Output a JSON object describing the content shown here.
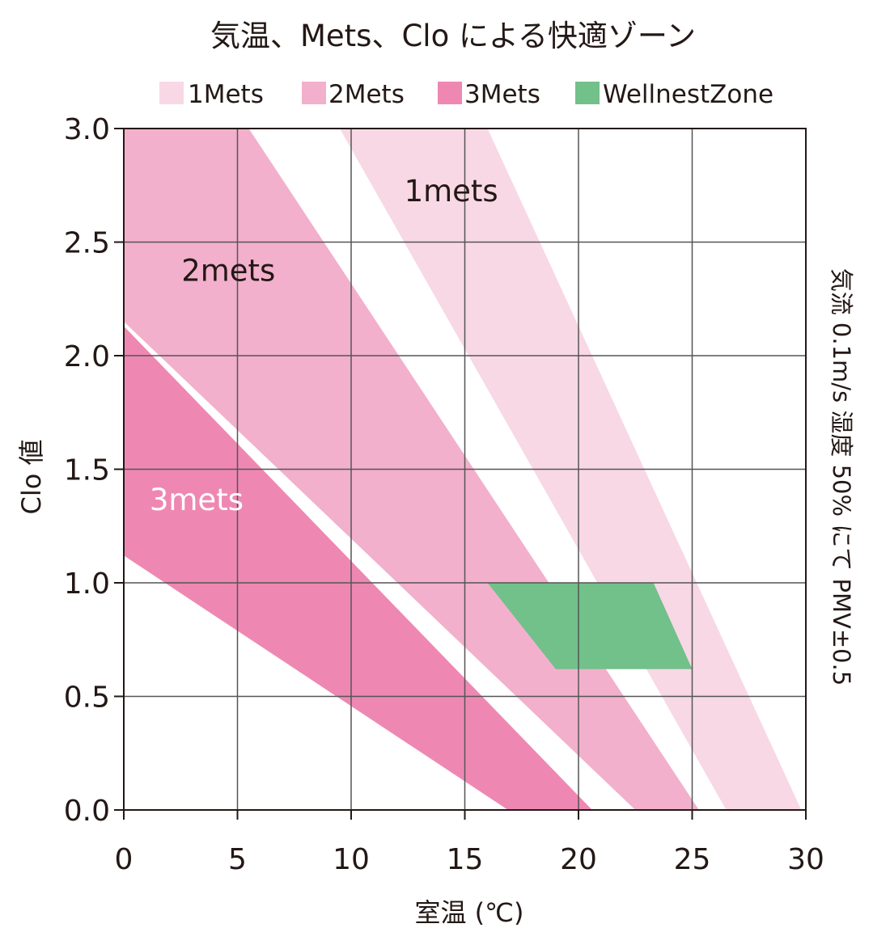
{
  "chart_data": {
    "type": "area",
    "title": "気温、Mets、Clo による快適ゾーン",
    "xlabel": "室温 (℃)",
    "ylabel": "Clo 値",
    "right_label": "気流 0.1m/s 湿度 50% にて PMV±0.5",
    "xlim": [
      0,
      30
    ],
    "ylim": [
      0,
      3.0
    ],
    "x_ticks": [
      0,
      5,
      10,
      15,
      20,
      25,
      30
    ],
    "x_tick_labels": [
      "0",
      "5",
      "10",
      "15",
      "20",
      "25",
      "30"
    ],
    "y_ticks": [
      0,
      0.5,
      1.0,
      1.5,
      2.0,
      2.5,
      3.0
    ],
    "y_tick_labels": [
      "0.0",
      "0.5",
      "1.0",
      "1.5",
      "2.0",
      "2.5",
      "3.0"
    ],
    "grid": true,
    "legend_position": "top",
    "legend": [
      {
        "label": "1Mets",
        "color": "#f8d8e5"
      },
      {
        "label": "2Mets",
        "color": "#f2b0cc"
      },
      {
        "label": "3Mets",
        "color": "#ee88b3"
      },
      {
        "label": "WellnestZone",
        "color": "#72c08a"
      }
    ],
    "series": [
      {
        "name": "1Mets",
        "color": "#f8d8e5",
        "polygon": [
          [
            9.5,
            3.0
          ],
          [
            16.0,
            3.0
          ],
          [
            29.8,
            0.0
          ],
          [
            26.5,
            0.0
          ]
        ]
      },
      {
        "name": "2Mets",
        "color": "#f2b0cc",
        "polygon": [
          [
            0,
            3.0
          ],
          [
            5.5,
            3.0
          ],
          [
            25.3,
            0.0
          ],
          [
            22.5,
            0.0
          ],
          [
            0,
            2.15
          ]
        ]
      },
      {
        "name": "3Mets",
        "color": "#ee88b3",
        "polygon": [
          [
            0,
            2.13
          ],
          [
            20.6,
            0.0
          ],
          [
            16.9,
            0.0
          ],
          [
            0,
            1.12
          ]
        ]
      },
      {
        "name": "WellnestZone",
        "color": "#72c08a",
        "polygon": [
          [
            16.0,
            1.0
          ],
          [
            23.3,
            1.0
          ],
          [
            25.0,
            0.62
          ],
          [
            19.0,
            0.62
          ]
        ]
      }
    ],
    "annotations": [
      {
        "text": "1mets",
        "x": 14.4,
        "y": 2.68,
        "color": "#231815"
      },
      {
        "text": "2mets",
        "x": 4.6,
        "y": 2.33,
        "color": "#231815"
      },
      {
        "text": "3mets",
        "x": 3.2,
        "y": 1.32,
        "color": "#ffffff"
      }
    ]
  }
}
